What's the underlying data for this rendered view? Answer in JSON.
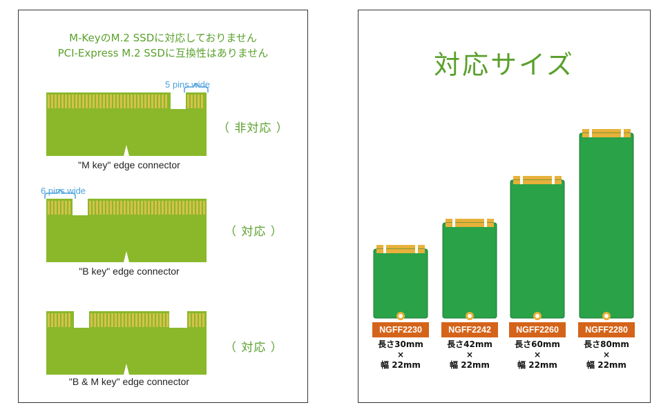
{
  "left_panel": {
    "notice_line1": "M-KeyのM.2 SSDに対応しておりません",
    "notice_line2": "PCI-Express M.2 SSDに互換性はありません",
    "connectors": [
      {
        "key": "m",
        "pins_label": "5 pins wide",
        "caption": "\"M key\" edge connector",
        "support": "（ 非対応 ）"
      },
      {
        "key": "b",
        "pins_label": "6 pins wide",
        "caption": "\"B key\" edge connector",
        "support": "（ 対応 ）"
      },
      {
        "key": "bm",
        "pins_label": "",
        "caption": "\"B & M key\" edge connector",
        "support": "（ 対応 ）"
      }
    ]
  },
  "right_panel": {
    "title": "対応サイズ",
    "cards": [
      {
        "model": "NGFF2230",
        "length": "長さ30mm",
        "times": "×",
        "width": "幅 22mm",
        "length_mm": 30
      },
      {
        "model": "NGFF2242",
        "length": "長さ42mm",
        "times": "×",
        "width": "幅 22mm",
        "length_mm": 42
      },
      {
        "model": "NGFF2260",
        "length": "長さ60mm",
        "times": "×",
        "width": "幅 22mm",
        "length_mm": 60
      },
      {
        "model": "NGFF2280",
        "length": "長さ80mm",
        "times": "×",
        "width": "幅 22mm",
        "length_mm": 80
      }
    ]
  },
  "colors": {
    "pcb_green": "#8ab82a",
    "pin_gold": "#d6c14a",
    "card_green": "#2aa248",
    "card_gold": "#e8b13a",
    "badge_orange": "#d4641a",
    "text_green": "#5aa02c",
    "label_blue": "#4aa0dc"
  }
}
